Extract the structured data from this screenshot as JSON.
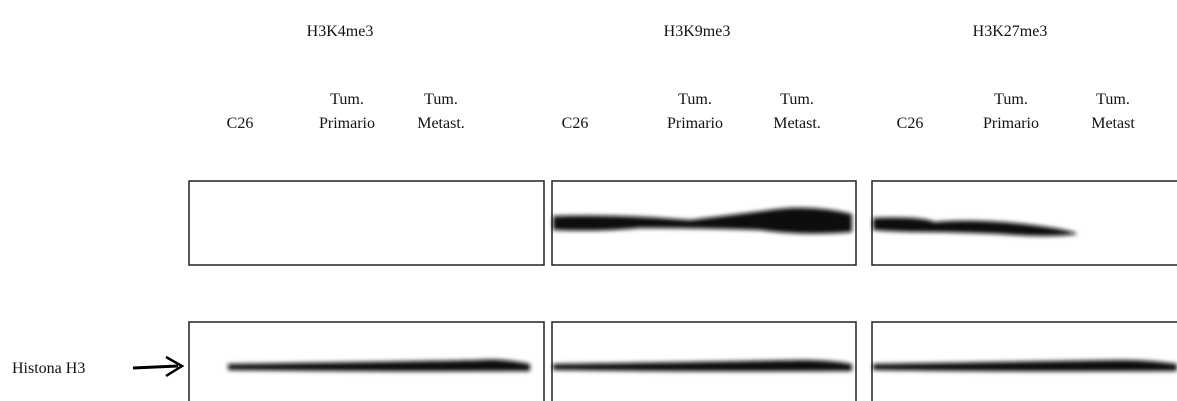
{
  "panels": [
    {
      "title": "H3K4me3",
      "lanes": [
        [
          "C26"
        ],
        [
          "Tum.",
          "Primario"
        ],
        [
          "Tum.",
          "Metast."
        ]
      ]
    },
    {
      "title": "H3K9me3",
      "lanes": [
        [
          "C26"
        ],
        [
          "Tum.",
          "Primario"
        ],
        [
          "Tum.",
          "Metast."
        ]
      ]
    },
    {
      "title": "H3K27me3",
      "lanes": [
        [
          "C26"
        ],
        [
          "Tum.",
          "Primario"
        ],
        [
          "Tum.",
          "Metast"
        ]
      ]
    }
  ],
  "row_label": "Histona H3"
}
